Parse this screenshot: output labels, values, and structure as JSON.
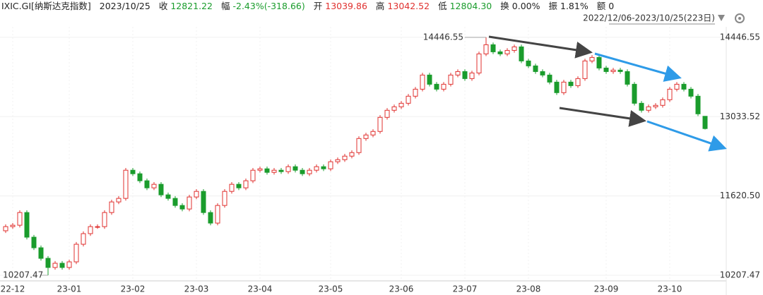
{
  "chart_data": {
    "type": "candlestick",
    "quote": [
      {
        "label": "IXIC.GI[纳斯达克指数]",
        "color": "#222222"
      },
      {
        "label": "2023/10/25",
        "color": "#222222"
      },
      {
        "label": "收",
        "value": "12821.22",
        "color": "#1a9c2c"
      },
      {
        "label": "幅",
        "value": "-2.43%(-318.66)",
        "color": "#1a9c2c"
      },
      {
        "label": "开",
        "value": "13039.86",
        "color": "#e0312f"
      },
      {
        "label": "高",
        "value": "13042.52",
        "color": "#e0312f"
      },
      {
        "label": "低",
        "value": "12804.30",
        "color": "#1a9c2c"
      },
      {
        "label": "换",
        "value": "0.00%",
        "color": "#222222"
      },
      {
        "label": "振",
        "value": "1.81%",
        "color": "#222222"
      },
      {
        "label": "额",
        "value": "0",
        "color": "#222222"
      }
    ],
    "range": "2022/12/06-2023/10/25(223日)",
    "up_color": "#e0312f",
    "down_color": "#1a9c2c",
    "ylim": [
      10107,
      14735
    ],
    "yticks": [
      14446.55,
      13033.52,
      {
        "value": 11620.5,
        "label": "11620.50"
      },
      10207.47
    ],
    "xticks": [
      {
        "value": 1,
        "label": "22-12"
      },
      {
        "value": 9,
        "label": "23-01"
      },
      {
        "value": 18,
        "label": "23-02"
      },
      {
        "value": 27,
        "label": "23-03"
      },
      {
        "value": 36,
        "label": "23-04"
      },
      {
        "value": 46,
        "label": "23-05"
      },
      {
        "value": 56,
        "label": "23-06"
      },
      {
        "value": 65,
        "label": "23-07"
      },
      {
        "value": 74,
        "label": "23-08"
      },
      {
        "value": 85,
        "label": "23-09"
      },
      {
        "value": 94,
        "label": "23-10"
      }
    ],
    "ohlc": [
      [
        11000,
        11114,
        10960,
        11074
      ],
      [
        11074,
        11139,
        11034,
        11099
      ],
      [
        11099,
        11365,
        11059,
        11325
      ],
      [
        11325,
        11365,
        10846,
        10886
      ],
      [
        10886,
        10926,
        10657,
        10697
      ],
      [
        10697,
        10737,
        10469,
        10509
      ],
      [
        10509,
        10549,
        10207.47,
        10346
      ],
      [
        10346,
        10461,
        10306,
        10421
      ],
      [
        10421,
        10461,
        10306,
        10346
      ],
      [
        10346,
        10486,
        10306,
        10446
      ],
      [
        10446,
        10800,
        10406,
        10760
      ],
      [
        10760,
        10989,
        10720,
        10949
      ],
      [
        10949,
        11114,
        10909,
        11074
      ],
      [
        11074,
        11114,
        11034,
        11074
      ],
      [
        11074,
        11365,
        11034,
        11325
      ],
      [
        11325,
        11554,
        11285,
        11514
      ],
      [
        11514,
        11617,
        11474,
        11577
      ],
      [
        11577,
        12119,
        11537,
        12079
      ],
      [
        12079,
        12119,
        11976,
        12016
      ],
      [
        12016,
        12056,
        11851,
        11891
      ],
      [
        11891,
        11931,
        11725,
        11765
      ],
      [
        11765,
        11868,
        11725,
        11828
      ],
      [
        11828,
        11868,
        11600,
        11640
      ],
      [
        11640,
        11680,
        11537,
        11577
      ],
      [
        11577,
        11617,
        11411,
        11451
      ],
      [
        11451,
        11491,
        11348,
        11388
      ],
      [
        11388,
        11642,
        11348,
        11602
      ],
      [
        11602,
        11742,
        11562,
        11702
      ],
      [
        11702,
        11742,
        11285,
        11325
      ],
      [
        11325,
        11365,
        11097,
        11137
      ],
      [
        11137,
        11491,
        11097,
        11451
      ],
      [
        11451,
        11742,
        11411,
        11702
      ],
      [
        11702,
        11868,
        11662,
        11828
      ],
      [
        11828,
        11868,
        11725,
        11765
      ],
      [
        11765,
        11931,
        11725,
        11891
      ],
      [
        11891,
        12119,
        11851,
        12079
      ],
      [
        12079,
        12144,
        12039,
        12104
      ],
      [
        12104,
        12144,
        12001,
        12041
      ],
      [
        12041,
        12119,
        12001,
        12079
      ],
      [
        12079,
        12119,
        12014,
        12054
      ],
      [
        12054,
        12182,
        12014,
        12142
      ],
      [
        12142,
        12182,
        12039,
        12079
      ],
      [
        12079,
        12119,
        11976,
        12016
      ],
      [
        12016,
        12119,
        11976,
        12079
      ],
      [
        12079,
        12182,
        12039,
        12142
      ],
      [
        12142,
        12182,
        12064,
        12104
      ],
      [
        12104,
        12270,
        12064,
        12230
      ],
      [
        12230,
        12307,
        12190,
        12267
      ],
      [
        12267,
        12370,
        12227,
        12330
      ],
      [
        12330,
        12433,
        12290,
        12393
      ],
      [
        12393,
        12684,
        12353,
        12644
      ],
      [
        12644,
        12747,
        12604,
        12707
      ],
      [
        12707,
        12810,
        12667,
        12770
      ],
      [
        12770,
        13061,
        12730,
        13021
      ],
      [
        13021,
        13187,
        12981,
        13147
      ],
      [
        13147,
        13249,
        13107,
        13209
      ],
      [
        13209,
        13312,
        13169,
        13272
      ],
      [
        13272,
        13438,
        13232,
        13398
      ],
      [
        13398,
        13563,
        13358,
        13523
      ],
      [
        13523,
        13815,
        13483,
        13775
      ],
      [
        13775,
        13815,
        13571,
        13611
      ],
      [
        13611,
        13651,
        13483,
        13523
      ],
      [
        13523,
        13651,
        13483,
        13611
      ],
      [
        13611,
        13815,
        13571,
        13775
      ],
      [
        13775,
        13877,
        13735,
        13837
      ],
      [
        13837,
        13877,
        13672,
        13712
      ],
      [
        13712,
        13852,
        13672,
        13812
      ],
      [
        13812,
        14192,
        13772,
        14152
      ],
      [
        14152,
        14446.55,
        14112,
        14315
      ],
      [
        14315,
        14355,
        14149,
        14189
      ],
      [
        14189,
        14229,
        14112,
        14152
      ],
      [
        14152,
        14254,
        14112,
        14214
      ],
      [
        14214,
        14317,
        14174,
        14277
      ],
      [
        14277,
        14317,
        13986,
        14026
      ],
      [
        14026,
        14066,
        13898,
        13938
      ],
      [
        13938,
        13978,
        13797,
        13837
      ],
      [
        13837,
        13877,
        13735,
        13775
      ],
      [
        13775,
        13815,
        13609,
        13649
      ],
      [
        13649,
        13689,
        13421,
        13461
      ],
      [
        13461,
        13689,
        13421,
        13649
      ],
      [
        13649,
        13689,
        13546,
        13586
      ],
      [
        13586,
        13752,
        13546,
        13712
      ],
      [
        13712,
        14066,
        13672,
        14026
      ],
      [
        14026,
        14129,
        13986,
        14089
      ],
      [
        14089,
        14129,
        13860,
        13900
      ],
      [
        13900,
        13940,
        13797,
        13837
      ],
      [
        13837,
        13903,
        13797,
        13863
      ],
      [
        13863,
        13903,
        13797,
        13837
      ],
      [
        13837,
        13877,
        13571,
        13611
      ],
      [
        13611,
        13651,
        13232,
        13272
      ],
      [
        13272,
        13312,
        13107,
        13147
      ],
      [
        13147,
        13249,
        13107,
        13209
      ],
      [
        13209,
        13275,
        13169,
        13235
      ],
      [
        13235,
        13375,
        13195,
        13335
      ],
      [
        13335,
        13563,
        13295,
        13523
      ],
      [
        13523,
        13651,
        13483,
        13611
      ],
      [
        13611,
        13651,
        13483,
        13523
      ],
      [
        13523,
        13563,
        13358,
        13398
      ],
      [
        13398,
        13438,
        13044,
        13084
      ],
      [
        13039.86,
        13042.52,
        12804.3,
        12821.22
      ]
    ]
  }
}
